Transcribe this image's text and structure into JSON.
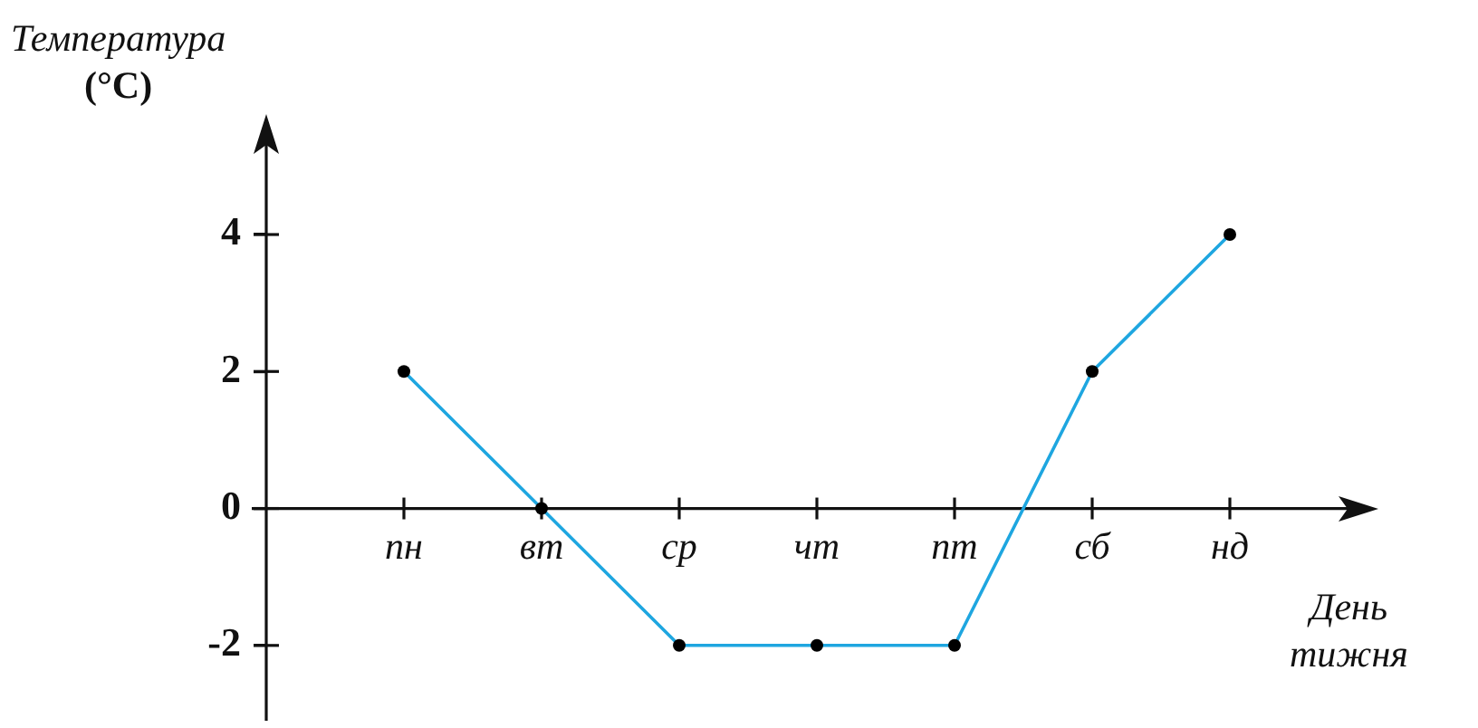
{
  "chart_data": {
    "type": "line",
    "xlabel": "День тижня",
    "ylabel": "Температура (°C)",
    "categories": [
      "пн",
      "вт",
      "ср",
      "чт",
      "пт",
      "сб",
      "нд"
    ],
    "series": [
      {
        "color": "#1ea6e0",
        "values": [
          2,
          0,
          -2,
          -2,
          -2,
          2,
          4
        ]
      }
    ],
    "ylim": [
      -3.1,
      5.6
    ],
    "yticks": [
      -2,
      0,
      2,
      4
    ],
    "marker": "circle",
    "line_style": "solid",
    "grid": false,
    "legend": false
  }
}
